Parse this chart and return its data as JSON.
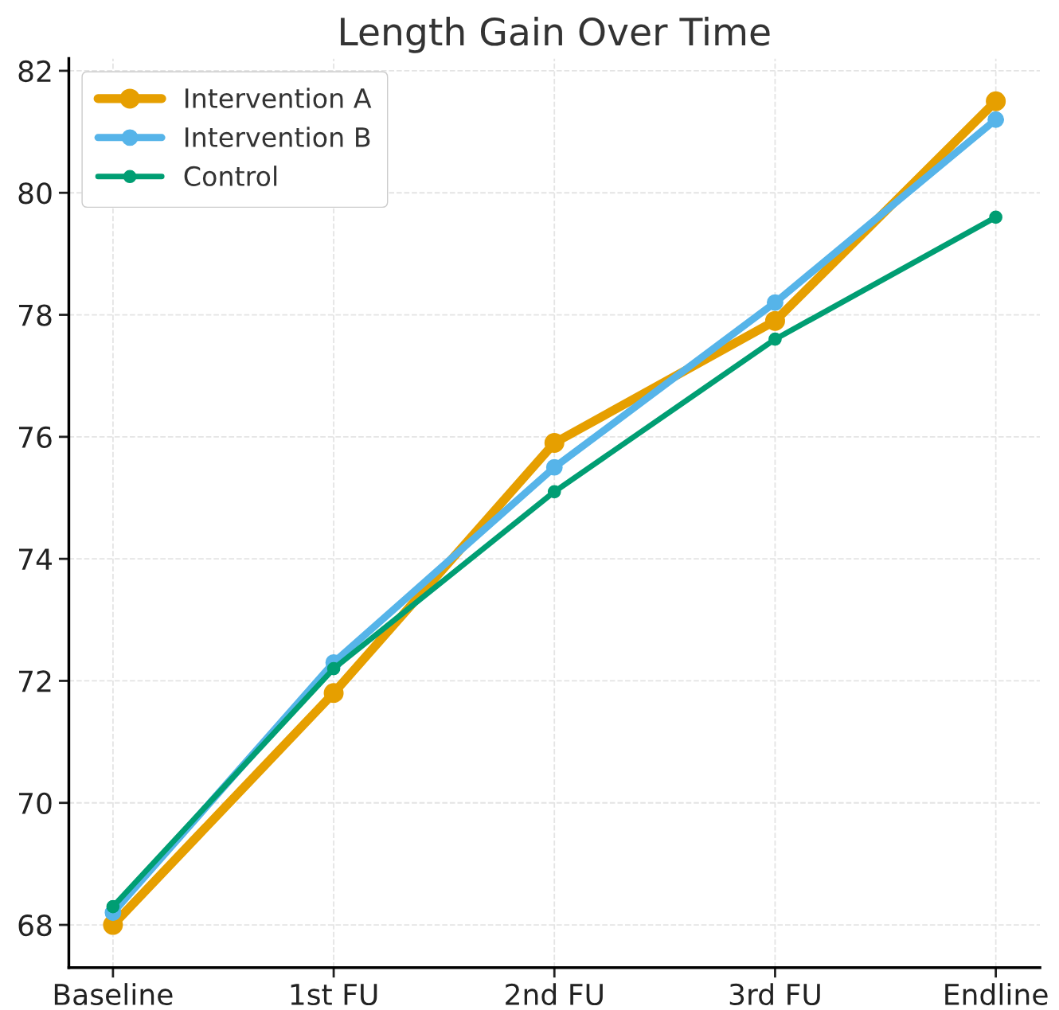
{
  "chart_data": {
    "type": "line",
    "title": "Length Gain Over Time",
    "categories": [
      "Baseline",
      "1st FU",
      "2nd FU",
      "3rd FU",
      "Endline"
    ],
    "series": [
      {
        "name": "Intervention A",
        "color": "#e69f00",
        "values": [
          68.0,
          71.8,
          75.9,
          77.9,
          81.5
        ]
      },
      {
        "name": "Intervention B",
        "color": "#56b4e9",
        "values": [
          68.2,
          72.3,
          75.5,
          78.2,
          81.2
        ]
      },
      {
        "name": "Control",
        "color": "#009e73",
        "values": [
          68.3,
          72.2,
          75.1,
          77.6,
          79.6
        ]
      }
    ],
    "ylim": [
      67.3,
      82.2
    ],
    "yticks": [
      68,
      70,
      72,
      74,
      76,
      78,
      80,
      82
    ],
    "grid": true,
    "legend": "top left",
    "marker": "circle",
    "line_style": "solid"
  }
}
